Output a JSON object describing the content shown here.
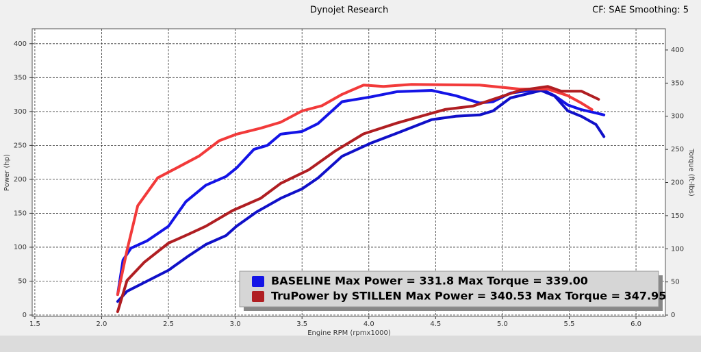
{
  "chart_data": {
    "type": "line",
    "title": "Dynojet Research",
    "subtitle": "CF: SAE Smoothing: 5",
    "x_label": "Engine RPM (rpmx1000)",
    "y_label": "Power (hp)",
    "y2_label": "Torque (ft-lbs)",
    "xlim": [
      1.48,
      6.22
    ],
    "ylim": [
      -2,
      422
    ],
    "y2lim": [
      -2,
      432
    ],
    "xticks": [
      1.5,
      {
        "value": 2,
        "label": "2.0"
      },
      2.5,
      {
        "value": 3,
        "label": "3.0"
      },
      3.5,
      {
        "value": 4,
        "label": "4.0"
      },
      4.5,
      {
        "value": 5,
        "label": "5.0"
      },
      5.5,
      {
        "value": 6,
        "label": "6.0"
      }
    ],
    "yticks": [
      0,
      50,
      100,
      150,
      200,
      250,
      300,
      350,
      400
    ],
    "y2ticks": [
      0,
      50,
      100,
      150,
      200,
      250,
      300,
      350,
      400
    ],
    "grid": true,
    "series": [
      {
        "color": "#1414e6",
        "axis": "y2",
        "x": [
          2.12,
          2.16,
          2.22,
          2.34,
          2.5,
          2.63,
          2.78,
          2.93,
          3.01,
          3.14,
          3.24,
          3.34,
          3.5,
          3.62,
          3.8,
          4.01,
          4.21,
          4.47,
          4.65,
          4.83,
          4.93,
          5.06,
          5.29,
          5.39,
          5.49,
          5.59,
          5.7,
          5.76
        ],
        "values": [
          31,
          83,
          101,
          112,
          134,
          171,
          196,
          209,
          222,
          250,
          256,
          273,
          277,
          289,
          322,
          329,
          337,
          339,
          331,
          320,
          322,
          335,
          341,
          331,
          317,
          310,
          305,
          302
        ]
      },
      {
        "color": "#1010c8",
        "x": [
          2.12,
          2.19,
          2.32,
          2.5,
          2.65,
          2.78,
          2.93,
          3.01,
          3.16,
          3.34,
          3.5,
          3.62,
          3.8,
          4.01,
          4.21,
          4.47,
          4.65,
          4.83,
          4.93,
          5.06,
          5.29,
          5.39,
          5.49,
          5.59,
          5.7,
          5.76
        ],
        "values": [
          20,
          35,
          48,
          66,
          87,
          104,
          117,
          131,
          152,
          172,
          186,
          202,
          234,
          253,
          268,
          288,
          293,
          295,
          301,
          320,
          331,
          323,
          301,
          293,
          281,
          263
        ]
      },
      {
        "color": "#f23a3a",
        "axis": "y2",
        "x": [
          2.12,
          2.19,
          2.27,
          2.42,
          2.58,
          2.73,
          2.88,
          3.01,
          3.19,
          3.34,
          3.5,
          3.65,
          3.8,
          3.96,
          4.11,
          4.32,
          4.83,
          5.13,
          5.34,
          5.49,
          5.59,
          5.67
        ],
        "values": [
          31,
          98,
          165,
          207,
          224,
          240,
          263,
          273,
          282,
          291,
          308,
          316,
          333,
          347,
          345,
          348,
          347,
          341,
          341,
          331,
          320,
          310
        ]
      },
      {
        "color": "#b01e22",
        "x": [
          2.12,
          2.19,
          2.32,
          2.5,
          2.65,
          2.78,
          2.98,
          3.19,
          3.34,
          3.55,
          3.75,
          3.96,
          4.21,
          4.57,
          4.78,
          4.93,
          5.13,
          5.34,
          5.44,
          5.59,
          5.72
        ],
        "values": [
          5,
          51,
          78,
          106,
          119,
          131,
          154,
          172,
          194,
          214,
          242,
          267,
          283,
          303,
          308,
          318,
          331,
          337,
          330,
          330,
          318
        ]
      }
    ],
    "legend": [
      {
        "label": "BASELINE Max Power = 331.8 Max Torque = 339.00",
        "color": "#1414e6"
      },
      {
        "label": "TruPower by STILLEN Max Power = 340.53 Max Torque = 347.95",
        "color": "#b01e22"
      }
    ]
  }
}
